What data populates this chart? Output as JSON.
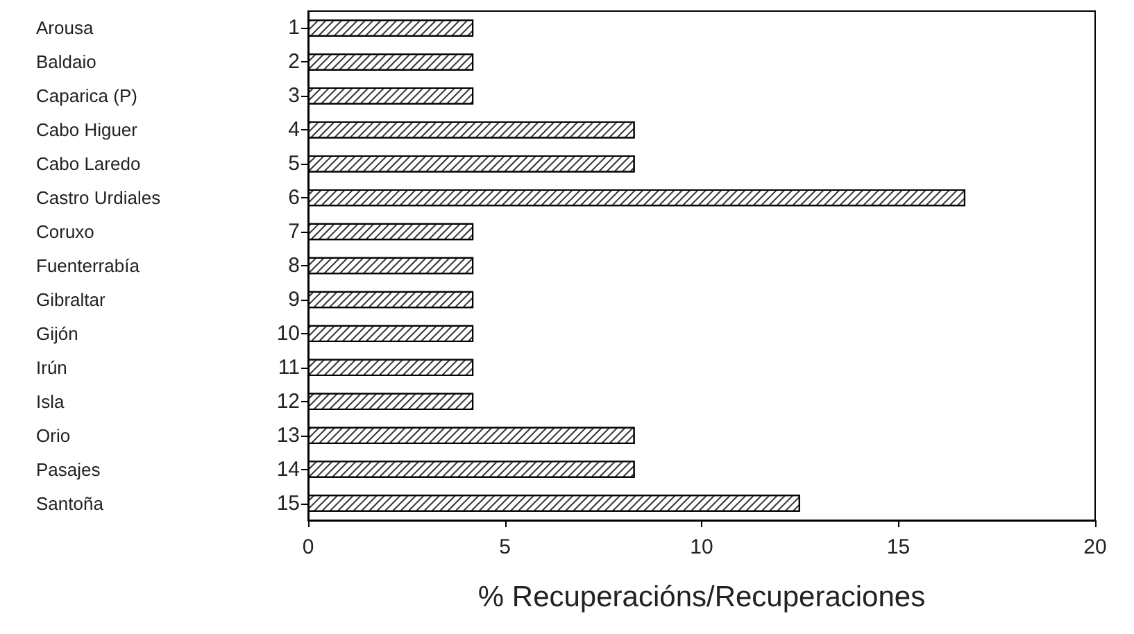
{
  "chart_data": {
    "type": "bar",
    "orientation": "horizontal",
    "xlabel": "% Recuperacións/Recuperaciones",
    "categories": [
      "Arousa 1",
      "Baldaio 2",
      "Caparica (P) 3",
      "Cabo Higuer 4",
      "Cabo Laredo 5",
      "Castro Urdiales 6",
      "Coruxo 7",
      "Fuenterrabía 8",
      "Gibraltar 9",
      "Gijón 10",
      "Irún 11",
      "Isla 12",
      "Orio 13",
      "Pasajes 14",
      "Santoña 15"
    ],
    "values": [
      4.2,
      4.2,
      4.2,
      8.3,
      8.3,
      16.7,
      4.2,
      4.2,
      4.2,
      4.2,
      4.2,
      4.2,
      8.3,
      8.3,
      12.5
    ],
    "color": "#ffffff",
    "xlim": [
      0,
      20
    ],
    "xticks": [
      0,
      5,
      10,
      15,
      20
    ],
    "grid": false
  }
}
